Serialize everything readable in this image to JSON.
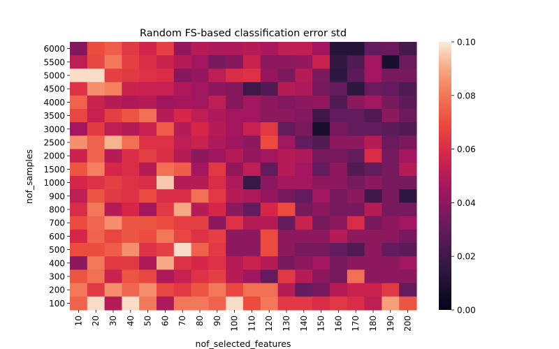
{
  "chart_data": {
    "type": "heatmap",
    "title": "Random FS-based classification error std",
    "xlabel": "nof_selected_features",
    "ylabel": "nof_samples",
    "x_categories": [
      "10",
      "20",
      "30",
      "40",
      "50",
      "60",
      "70",
      "80",
      "90",
      "100",
      "110",
      "120",
      "130",
      "140",
      "150",
      "160",
      "170",
      "180",
      "190",
      "200"
    ],
    "y_categories": [
      "6000",
      "5500",
      "5000",
      "4500",
      "4000",
      "3500",
      "3000",
      "2500",
      "2000",
      "1500",
      "1000",
      "900",
      "800",
      "700",
      "600",
      "500",
      "400",
      "300",
      "200",
      "100"
    ],
    "colorbar": {
      "min": 0.0,
      "max": 0.1,
      "ticks": [
        "0.00",
        "0.02",
        "0.04",
        "0.06",
        "0.08",
        "0.10"
      ],
      "colormap": "rocket"
    },
    "values": [
      [
        0.038,
        0.07,
        0.074,
        0.064,
        0.057,
        0.066,
        0.042,
        0.05,
        0.048,
        0.048,
        0.05,
        0.047,
        0.052,
        0.052,
        0.045,
        0.012,
        0.012,
        0.03,
        0.032,
        0.022
      ],
      [
        0.052,
        0.068,
        0.08,
        0.066,
        0.06,
        0.055,
        0.05,
        0.045,
        0.035,
        0.038,
        0.055,
        0.04,
        0.04,
        0.042,
        0.055,
        0.016,
        0.025,
        0.045,
        0.008,
        0.032
      ],
      [
        0.098,
        0.098,
        0.066,
        0.064,
        0.062,
        0.06,
        0.038,
        0.042,
        0.052,
        0.06,
        0.062,
        0.042,
        0.036,
        0.05,
        0.036,
        0.015,
        0.028,
        0.045,
        0.035,
        0.035
      ],
      [
        0.062,
        0.085,
        0.082,
        0.055,
        0.054,
        0.054,
        0.048,
        0.045,
        0.04,
        0.038,
        0.02,
        0.025,
        0.05,
        0.048,
        0.035,
        0.03,
        0.015,
        0.032,
        0.03,
        0.025
      ],
      [
        0.075,
        0.055,
        0.05,
        0.048,
        0.05,
        0.044,
        0.046,
        0.045,
        0.052,
        0.038,
        0.045,
        0.04,
        0.038,
        0.04,
        0.042,
        0.025,
        0.04,
        0.045,
        0.035,
        0.028
      ],
      [
        0.068,
        0.054,
        0.066,
        0.072,
        0.078,
        0.05,
        0.058,
        0.052,
        0.048,
        0.045,
        0.045,
        0.04,
        0.04,
        0.038,
        0.02,
        0.03,
        0.03,
        0.025,
        0.04,
        0.032
      ],
      [
        0.045,
        0.065,
        0.052,
        0.05,
        0.054,
        0.074,
        0.05,
        0.058,
        0.05,
        0.046,
        0.054,
        0.064,
        0.03,
        0.036,
        0.008,
        0.035,
        0.03,
        0.03,
        0.028,
        0.025
      ],
      [
        0.085,
        0.075,
        0.092,
        0.078,
        0.062,
        0.062,
        0.052,
        0.055,
        0.048,
        0.044,
        0.04,
        0.07,
        0.045,
        0.03,
        0.025,
        0.04,
        0.04,
        0.05,
        0.032,
        0.036
      ],
      [
        0.055,
        0.075,
        0.05,
        0.06,
        0.066,
        0.06,
        0.05,
        0.04,
        0.044,
        0.05,
        0.042,
        0.045,
        0.05,
        0.048,
        0.035,
        0.035,
        0.03,
        0.06,
        0.035,
        0.045
      ],
      [
        0.072,
        0.082,
        0.058,
        0.06,
        0.05,
        0.078,
        0.074,
        0.045,
        0.064,
        0.042,
        0.052,
        0.03,
        0.05,
        0.045,
        0.03,
        0.04,
        0.025,
        0.03,
        0.035,
        0.05
      ],
      [
        0.058,
        0.062,
        0.066,
        0.062,
        0.06,
        0.095,
        0.05,
        0.05,
        0.06,
        0.048,
        0.018,
        0.04,
        0.046,
        0.046,
        0.04,
        0.04,
        0.035,
        0.04,
        0.035,
        0.035
      ],
      [
        0.052,
        0.072,
        0.064,
        0.062,
        0.07,
        0.06,
        0.06,
        0.078,
        0.064,
        0.05,
        0.048,
        0.042,
        0.035,
        0.03,
        0.045,
        0.035,
        0.04,
        0.02,
        0.035,
        0.015
      ],
      [
        0.06,
        0.08,
        0.05,
        0.058,
        0.045,
        0.064,
        0.09,
        0.05,
        0.058,
        0.04,
        0.03,
        0.058,
        0.07,
        0.035,
        0.04,
        0.035,
        0.035,
        0.05,
        0.035,
        0.035
      ],
      [
        0.07,
        0.076,
        0.085,
        0.072,
        0.072,
        0.07,
        0.066,
        0.066,
        0.04,
        0.062,
        0.05,
        0.05,
        0.03,
        0.055,
        0.035,
        0.04,
        0.06,
        0.035,
        0.04,
        0.045
      ],
      [
        0.058,
        0.075,
        0.068,
        0.072,
        0.07,
        0.08,
        0.068,
        0.062,
        0.066,
        0.04,
        0.04,
        0.07,
        0.04,
        0.04,
        0.04,
        0.05,
        0.04,
        0.04,
        0.04,
        0.035
      ],
      [
        0.07,
        0.07,
        0.074,
        0.085,
        0.062,
        0.066,
        0.098,
        0.075,
        0.064,
        0.04,
        0.04,
        0.07,
        0.04,
        0.035,
        0.035,
        0.03,
        0.025,
        0.04,
        0.03,
        0.028
      ],
      [
        0.04,
        0.08,
        0.064,
        0.064,
        0.048,
        0.09,
        0.062,
        0.058,
        0.062,
        0.05,
        0.055,
        0.05,
        0.035,
        0.04,
        0.045,
        0.035,
        0.04,
        0.04,
        0.04,
        0.045
      ],
      [
        0.072,
        0.078,
        0.055,
        0.072,
        0.068,
        0.048,
        0.054,
        0.062,
        0.066,
        0.05,
        0.044,
        0.03,
        0.064,
        0.05,
        0.04,
        0.035,
        0.078,
        0.04,
        0.04,
        0.04
      ],
      [
        0.08,
        0.064,
        0.085,
        0.076,
        0.085,
        0.068,
        0.064,
        0.072,
        0.08,
        0.068,
        0.078,
        0.078,
        0.05,
        0.03,
        0.035,
        0.05,
        0.055,
        0.055,
        0.064,
        0.03
      ],
      [
        0.075,
        0.098,
        0.05,
        0.098,
        0.08,
        0.048,
        0.08,
        0.08,
        0.075,
        0.098,
        0.07,
        0.08,
        0.064,
        0.064,
        0.06,
        0.064,
        0.06,
        0.052,
        0.088,
        0.072
      ]
    ]
  }
}
